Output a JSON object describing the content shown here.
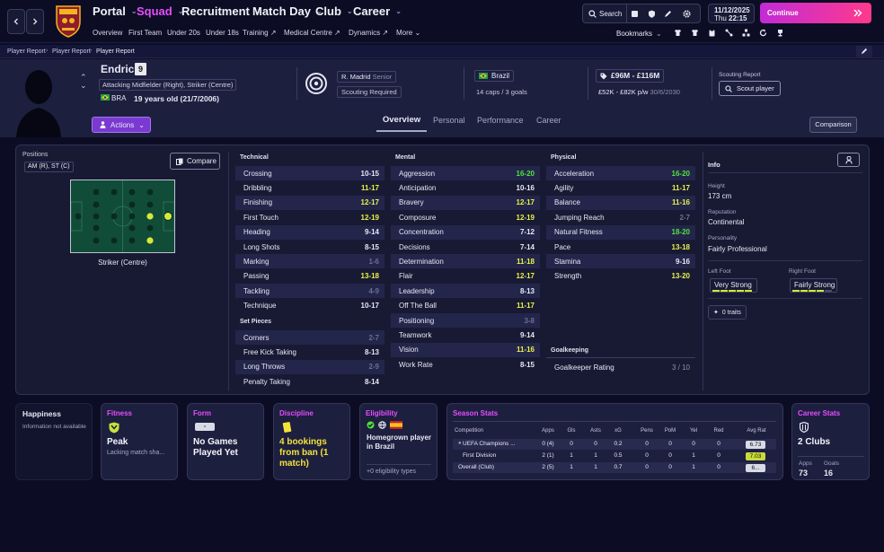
{
  "nav": {
    "main": [
      {
        "label": "Portal",
        "active": false
      },
      {
        "label": "Squad",
        "active": true
      },
      {
        "label": "Recruitment",
        "active": false
      },
      {
        "label": "Match Day",
        "active": false
      },
      {
        "label": "Club",
        "active": false
      },
      {
        "label": "Career",
        "active": false
      }
    ],
    "sub": [
      "Overview",
      "First Team",
      "Under 20s",
      "Under 18s",
      "Training",
      "Medical Centre",
      "Dynamics",
      "More"
    ],
    "search_label": "Search",
    "date": "11/12/2025",
    "day": "Thu",
    "time": "22:15",
    "continue_label": "Continue",
    "bookmarks_label": "Bookmarks"
  },
  "breadcrumb": [
    "Player Report",
    "Player Report",
    "Player Report"
  ],
  "player": {
    "name": "Endrick",
    "number": "9",
    "positions_text": "Attacking Midfielder (Right), Striker (Centre)",
    "nationality_code": "BRA",
    "age_text": "19 years old (21/7/2006)",
    "club": "R. Madrid",
    "squad_status": "Senior",
    "scouting_status": "Scouting Required",
    "nation": "Brazil",
    "caps_text": "14 caps / 3 goals",
    "value": "£96M - £116M",
    "wage": "£52K - £82K p/w",
    "contract_end": "30/6/2030",
    "scouting_report_label": "Scouting Report",
    "scout_button": "Scout player",
    "actions_label": "Actions",
    "comparison_label": "Comparison"
  },
  "tabs": [
    "Overview",
    "Personal",
    "Performance",
    "Career"
  ],
  "positions": {
    "label": "Positions",
    "tag": "AM (R), ST (C)",
    "compare_label": "Compare",
    "pitch_caption": "Striker (Centre)"
  },
  "technical": {
    "title": "Technical",
    "rows": [
      {
        "name": "Crossing",
        "value": "10-15",
        "tone": "white"
      },
      {
        "name": "Dribbling",
        "value": "11-17",
        "tone": "yellow"
      },
      {
        "name": "Finishing",
        "value": "12-17",
        "tone": "yellow"
      },
      {
        "name": "First Touch",
        "value": "12-19",
        "tone": "yellow"
      },
      {
        "name": "Heading",
        "value": "9-14",
        "tone": "white"
      },
      {
        "name": "Long Shots",
        "value": "8-15",
        "tone": "white"
      },
      {
        "name": "Marking",
        "value": "1-6",
        "tone": "dim"
      },
      {
        "name": "Passing",
        "value": "13-18",
        "tone": "yellow"
      },
      {
        "name": "Tackling",
        "value": "4-9",
        "tone": "dim"
      },
      {
        "name": "Technique",
        "value": "10-17",
        "tone": "white"
      }
    ]
  },
  "set_pieces": {
    "title": "Set Pieces",
    "rows": [
      {
        "name": "Corners",
        "value": "2-7",
        "tone": "dim"
      },
      {
        "name": "Free Kick Taking",
        "value": "8-13",
        "tone": "white"
      },
      {
        "name": "Long Throws",
        "value": "2-9",
        "tone": "dim"
      },
      {
        "name": "Penalty Taking",
        "value": "8-14",
        "tone": "white"
      }
    ]
  },
  "mental": {
    "title": "Mental",
    "rows": [
      {
        "name": "Aggression",
        "value": "16-20",
        "tone": "green"
      },
      {
        "name": "Anticipation",
        "value": "10-16",
        "tone": "white"
      },
      {
        "name": "Bravery",
        "value": "12-17",
        "tone": "yellow"
      },
      {
        "name": "Composure",
        "value": "12-19",
        "tone": "yellow"
      },
      {
        "name": "Concentration",
        "value": "7-12",
        "tone": "white"
      },
      {
        "name": "Decisions",
        "value": "7-14",
        "tone": "white"
      },
      {
        "name": "Determination",
        "value": "11-18",
        "tone": "yellow"
      },
      {
        "name": "Flair",
        "value": "12-17",
        "tone": "yellow"
      },
      {
        "name": "Leadership",
        "value": "8-13",
        "tone": "white"
      },
      {
        "name": "Off The Ball",
        "value": "11-17",
        "tone": "yellow"
      },
      {
        "name": "Positioning",
        "value": "3-8",
        "tone": "dim"
      },
      {
        "name": "Teamwork",
        "value": "9-14",
        "tone": "white"
      },
      {
        "name": "Vision",
        "value": "11-16",
        "tone": "yellow"
      },
      {
        "name": "Work Rate",
        "value": "8-15",
        "tone": "white"
      }
    ]
  },
  "physical": {
    "title": "Physical",
    "rows": [
      {
        "name": "Acceleration",
        "value": "16-20",
        "tone": "green"
      },
      {
        "name": "Agility",
        "value": "11-17",
        "tone": "yellow"
      },
      {
        "name": "Balance",
        "value": "11-16",
        "tone": "yellow"
      },
      {
        "name": "Jumping Reach",
        "value": "2-7",
        "tone": "dim"
      },
      {
        "name": "Natural Fitness",
        "value": "18-20",
        "tone": "green"
      },
      {
        "name": "Pace",
        "value": "13-18",
        "tone": "yellow"
      },
      {
        "name": "Stamina",
        "value": "9-16",
        "tone": "white"
      },
      {
        "name": "Strength",
        "value": "13-20",
        "tone": "yellow"
      }
    ]
  },
  "goalkeeping": {
    "title": "Goalkeeping",
    "row_name": "Goalkeeper Rating",
    "row_value": "3 / 10"
  },
  "info": {
    "title": "Info",
    "height_label": "Height",
    "height": "173 cm",
    "reputation_label": "Reputation",
    "reputation": "Continental",
    "personality_label": "Personality",
    "personality": "Fairly Professional",
    "left_foot_label": "Left Foot",
    "left_foot": "Very Strong",
    "left_foot_level": 5,
    "right_foot_label": "Right Foot",
    "right_foot": "Fairly Strong",
    "right_foot_level": 4,
    "traits": "0 traits"
  },
  "cards": {
    "happiness_title": "Happiness",
    "happiness_text": "Information not available",
    "fitness_title": "Fitness",
    "fitness_status": "Peak",
    "fitness_sub": "Lacking match sha...",
    "form_title": "Form",
    "form_badge": "-",
    "form_status": "No Games Played Yet",
    "discipline_title": "Discipline",
    "discipline_status": "4 bookings from ban (1 match)",
    "eligibility_title": "Eligibility",
    "eligibility_status": "Homegrown player in Brazil",
    "eligibility_more": "+0 eligibility types",
    "career_title": "Career Stats",
    "career_clubs": "2 Clubs",
    "career_apps_label": "Apps",
    "career_apps": "73",
    "career_goals_label": "Goals",
    "career_goals": "16"
  },
  "season_stats": {
    "title": "Season Stats",
    "columns": [
      "Competition",
      "Apps",
      "Gls",
      "Asts",
      "xG",
      "Pens",
      "PoM",
      "Yel",
      "Red",
      "Avg Rat"
    ],
    "rows": [
      {
        "comp": "UEFA Champions ...",
        "apps": "0 (4)",
        "gls": "0",
        "asts": "0",
        "xg": "0.2",
        "pens": "0",
        "pom": "0",
        "yel": "0",
        "red": "0",
        "rat": "6.73"
      },
      {
        "comp": "First Division",
        "apps": "2 (1)",
        "gls": "1",
        "asts": "1",
        "xg": "0.5",
        "pens": "0",
        "pom": "0",
        "yel": "1",
        "red": "0",
        "rat": "7.03"
      },
      {
        "comp": "Overall (Club)",
        "apps": "2 (5)",
        "gls": "1",
        "asts": "1",
        "xg": "0.7",
        "pens": "0",
        "pom": "0",
        "yel": "1",
        "red": "0",
        "rat": "6..."
      }
    ]
  },
  "colors": {
    "accent": "#e64dff",
    "active_tab_line": "#8b8fb0",
    "green": "#52e23c",
    "yellow": "#e9f24a",
    "continue_gradient": [
      "#c628d8",
      "#ff3b8a"
    ]
  }
}
